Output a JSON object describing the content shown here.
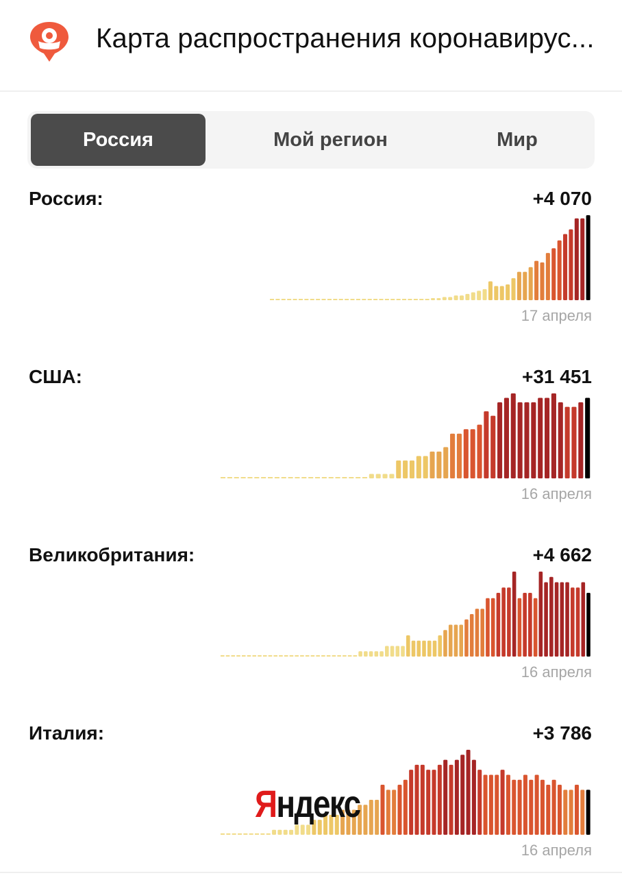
{
  "header": {
    "title": "Карта распространения коронавирус...",
    "logo_icon": "coronavirus-map-pin-icon"
  },
  "tabs": [
    {
      "label": "Россия",
      "active": true
    },
    {
      "label": "Мой регион",
      "active": false
    },
    {
      "label": "Мир",
      "active": false
    }
  ],
  "palette": [
    "#f1dc8a",
    "#edc766",
    "#e6a550",
    "#e27d3c",
    "#d9552f",
    "#c53a2b",
    "#a52525",
    "#000000"
  ],
  "countries": [
    {
      "name": "Россия:",
      "delta": "+4 070",
      "date": "17 апреля",
      "values": [
        0,
        0,
        0,
        0,
        0,
        0,
        0,
        0,
        0,
        0,
        0,
        0,
        0,
        0,
        0,
        0,
        0,
        0,
        0,
        0,
        0,
        0,
        0,
        0,
        0,
        0,
        0,
        0,
        1,
        1,
        2,
        2,
        3,
        3,
        4,
        5,
        6,
        7,
        12,
        9,
        9,
        10,
        14,
        18,
        18,
        21,
        25,
        24,
        30,
        33,
        38,
        42,
        45,
        52,
        52,
        54
      ]
    },
    {
      "name": "США:",
      "delta": "+31 451",
      "date": "16 апреля",
      "values": [
        0,
        0,
        0,
        0,
        0,
        0,
        0,
        0,
        0,
        0,
        0,
        0,
        0,
        0,
        0,
        0,
        0,
        0,
        0,
        0,
        0,
        0,
        1,
        1,
        1,
        1,
        4,
        4,
        4,
        5,
        5,
        6,
        6,
        7,
        10,
        10,
        11,
        11,
        12,
        15,
        14,
        17,
        18,
        19,
        17,
        17,
        17,
        18,
        18,
        19,
        17,
        16,
        16,
        17,
        18
      ]
    },
    {
      "name": "Великобритания:",
      "delta": "+4 662",
      "date": "16 апреля",
      "values": [
        0,
        0,
        0,
        0,
        0,
        0,
        0,
        0,
        0,
        0,
        0,
        0,
        0,
        0,
        0,
        0,
        0,
        0,
        0,
        0,
        0,
        0,
        0,
        0,
        0,
        0,
        1,
        1,
        1,
        1,
        1,
        2,
        2,
        2,
        2,
        4,
        3,
        3,
        3,
        3,
        3,
        4,
        5,
        6,
        6,
        6,
        7,
        8,
        9,
        9,
        11,
        11,
        12,
        13,
        13,
        16,
        11,
        12,
        12,
        11,
        16,
        14,
        15,
        14,
        14,
        14,
        13,
        13,
        14,
        12
      ]
    },
    {
      "name": "Италия:",
      "delta": "+3 786",
      "date": "16 апреля",
      "values": [
        0,
        0,
        0,
        0,
        0,
        0,
        0,
        0,
        0,
        1,
        1,
        1,
        1,
        2,
        2,
        2,
        3,
        3,
        4,
        4,
        4,
        5,
        5,
        5,
        6,
        6,
        7,
        7,
        10,
        9,
        9,
        10,
        11,
        13,
        14,
        14,
        13,
        13,
        14,
        15,
        14,
        15,
        16,
        17,
        15,
        13,
        12,
        12,
        12,
        13,
        12,
        11,
        11,
        12,
        11,
        12,
        11,
        10,
        11,
        10,
        9,
        9,
        10,
        9,
        9
      ]
    }
  ],
  "watermark": {
    "first": "Я",
    "rest": "ндекс"
  }
}
